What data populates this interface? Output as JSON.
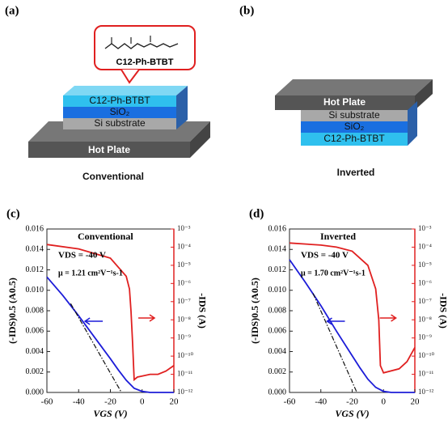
{
  "diagrams": {
    "a": {
      "label": "(a)",
      "molecule": "C12-Ph-BTBT",
      "layers": [
        "C12-Ph-BTBT",
        "SiO₂",
        "Si substrate"
      ],
      "plate": "Hot Plate",
      "caption": "Conventional"
    },
    "b": {
      "label": "(b)",
      "plate": "Hot Plate",
      "layers": [
        "Si substrate",
        "SiO₂",
        "C12-Ph-BTBT"
      ],
      "caption": "Inverted"
    }
  },
  "chart_data": [
    {
      "type": "line",
      "panel_label": "(c)",
      "annotation": "Conventional",
      "condition": "VDS = -40 V",
      "mobility": "μ = 1.21 cm²V⁻¹s-1",
      "xlabel": "VGS (V)",
      "ylabel": "(-IDS)0.5 (A0.5)",
      "y2label": "-IDS (A)",
      "xlim": [
        -60,
        20
      ],
      "xticks": [
        -60,
        -40,
        -20,
        0,
        20
      ],
      "ylim": [
        0,
        0.016
      ],
      "yticks": [
        {
          "value": 0,
          "label": "0.000"
        },
        {
          "value": 0.002,
          "label": "0.002"
        },
        {
          "value": 0.004,
          "label": "0.004"
        },
        {
          "value": 0.006,
          "label": "0.006"
        },
        {
          "value": 0.008,
          "label": "0.008"
        },
        {
          "value": 0.01,
          "label": "0.010"
        },
        {
          "value": 0.012,
          "label": "0.012"
        },
        {
          "value": 0.014,
          "label": "0.014"
        },
        {
          "value": 0.016,
          "label": "0.016"
        }
      ],
      "y2lim": [
        1e-12,
        0.001
      ],
      "y2log": true,
      "y2ticks": [
        {
          "value": 1e-12,
          "label": "10⁻¹²"
        },
        {
          "value": 1e-11,
          "label": "10⁻¹¹"
        },
        {
          "value": 1e-10,
          "label": "10⁻¹⁰"
        },
        {
          "value": 1e-09,
          "label": "10⁻⁹"
        },
        {
          "value": 1e-08,
          "label": "10⁻⁸"
        },
        {
          "value": 1e-07,
          "label": "10⁻⁷"
        },
        {
          "value": 1e-06,
          "label": "10⁻⁶"
        },
        {
          "value": 1e-05,
          "label": "10⁻⁵"
        },
        {
          "value": 0.0001,
          "label": "10⁻⁴"
        },
        {
          "value": 0.001,
          "label": "10⁻³"
        }
      ],
      "series": [
        {
          "color": "#1c1cd8",
          "x": [
            -60,
            -50,
            -40,
            -30,
            -20,
            -15,
            -10,
            -5,
            0,
            5,
            20
          ],
          "values": [
            0.0113,
            0.0095,
            0.0075,
            0.0054,
            0.0033,
            0.0022,
            0.0012,
            0.0004,
            0.0001,
            0,
            0
          ]
        },
        {
          "color": "#e02020",
          "axis": "y2",
          "x": [
            -60,
            -40,
            -20,
            -10,
            -8,
            -7,
            -6,
            -5,
            -3,
            0,
            5,
            10,
            15,
            20
          ],
          "values": [
            0.00014,
            8e-05,
            2.5e-05,
            2.5e-06,
            5e-07,
            3e-08,
            5e-10,
            5e-12,
            7e-12,
            8e-12,
            1e-11,
            1e-11,
            1.5e-11,
            3e-11
          ]
        },
        {
          "color": "#111111",
          "style": "dashdot",
          "x": [
            -45,
            -13
          ],
          "values": [
            0.0087,
            0
          ]
        }
      ]
    },
    {
      "type": "line",
      "panel_label": "(d)",
      "annotation": "Inverted",
      "condition": "VDS = -40 V",
      "mobility": "μ = 1.70 cm²V⁻¹s-1",
      "xlabel": "VGS (V)",
      "ylabel": "(-IDS)0.5 (A0.5)",
      "y2label": "-IDS (A)",
      "xlim": [
        -60,
        20
      ],
      "xticks": [
        -60,
        -40,
        -20,
        0,
        20
      ],
      "ylim": [
        0,
        0.016
      ],
      "yticks": [
        {
          "value": 0,
          "label": "0.000"
        },
        {
          "value": 0.002,
          "label": "0.002"
        },
        {
          "value": 0.004,
          "label": "0.004"
        },
        {
          "value": 0.006,
          "label": "0.006"
        },
        {
          "value": 0.008,
          "label": "0.008"
        },
        {
          "value": 0.01,
          "label": "0.010"
        },
        {
          "value": 0.012,
          "label": "0.012"
        },
        {
          "value": 0.014,
          "label": "0.014"
        },
        {
          "value": 0.016,
          "label": "0.016"
        }
      ],
      "y2lim": [
        1e-12,
        0.001
      ],
      "y2log": true,
      "y2ticks": [
        {
          "value": 1e-12,
          "label": "10⁻¹²"
        },
        {
          "value": 1e-11,
          "label": "10⁻¹¹"
        },
        {
          "value": 1e-10,
          "label": "10⁻¹⁰"
        },
        {
          "value": 1e-09,
          "label": "10⁻⁹"
        },
        {
          "value": 1e-08,
          "label": "10⁻⁸"
        },
        {
          "value": 1e-07,
          "label": "10⁻⁷"
        },
        {
          "value": 1e-06,
          "label": "10⁻⁶"
        },
        {
          "value": 1e-05,
          "label": "10⁻⁵"
        },
        {
          "value": 0.0001,
          "label": "10⁻⁴"
        },
        {
          "value": 0.001,
          "label": "10⁻³"
        }
      ],
      "series": [
        {
          "color": "#1c1cd8",
          "x": [
            -60,
            -50,
            -40,
            -30,
            -20,
            -15,
            -10,
            -5,
            0,
            5,
            20
          ],
          "values": [
            0.013,
            0.0108,
            0.0085,
            0.006,
            0.0036,
            0.0024,
            0.0013,
            0.0005,
            0.0001,
            0,
            0
          ]
        },
        {
          "color": "#e02020",
          "axis": "y2",
          "x": [
            -60,
            -40,
            -30,
            -20,
            -10,
            -5,
            -3,
            -2,
            0,
            10,
            15,
            20
          ],
          "values": [
            0.00017,
            0.00013,
            0.0001,
            6e-05,
            1e-05,
            5e-07,
            1e-08,
            3e-11,
            1.2e-11,
            2e-11,
            5e-11,
            3e-10
          ]
        },
        {
          "color": "#111111",
          "style": "dashdot",
          "x": [
            -45,
            -17
          ],
          "values": [
            0.0097,
            0
          ]
        }
      ]
    }
  ]
}
